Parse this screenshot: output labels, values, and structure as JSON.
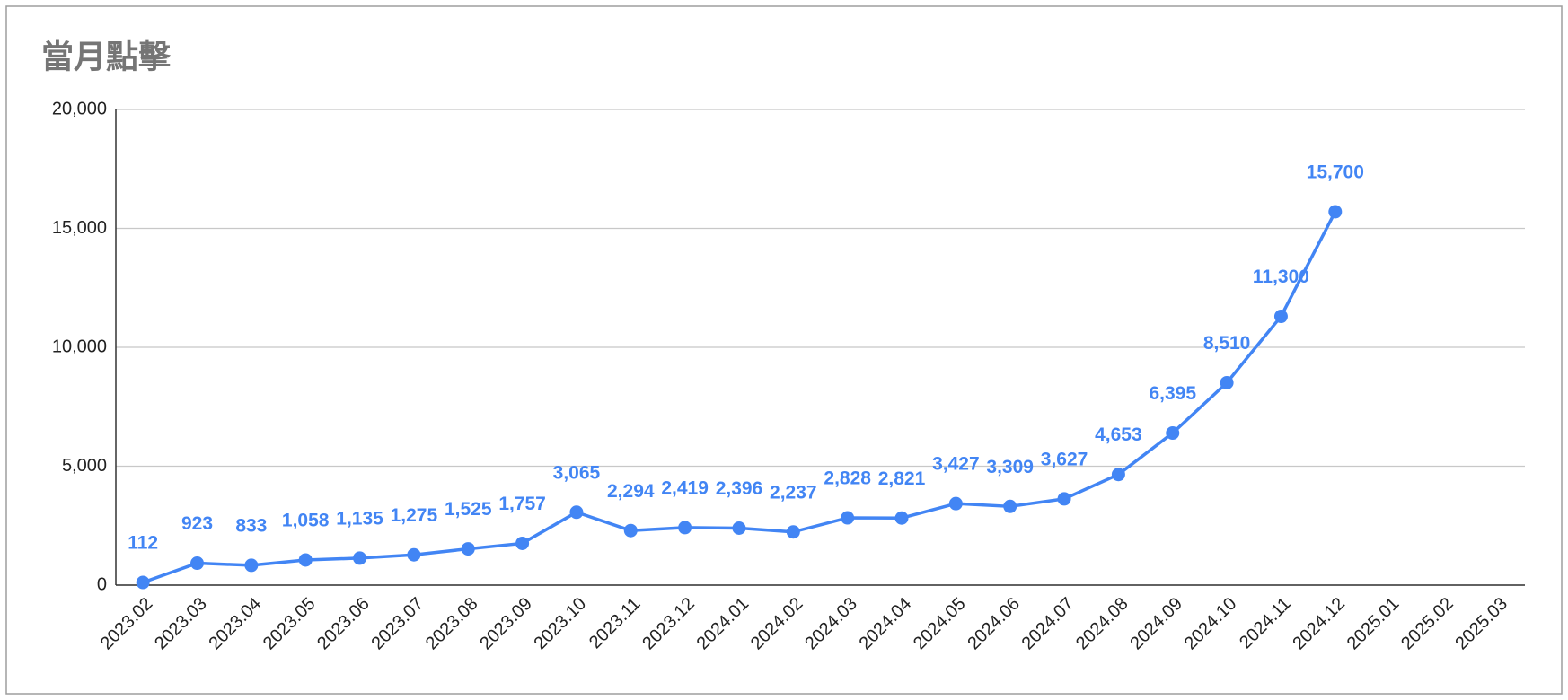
{
  "chart_data": {
    "type": "line",
    "title": "當月點擊",
    "categories": [
      "2023.02",
      "2023.03",
      "2023.04",
      "2023.05",
      "2023.06",
      "2023.07",
      "2023.08",
      "2023.09",
      "2023.10",
      "2023.11",
      "2023.12",
      "2024.01",
      "2024.02",
      "2024.03",
      "2024.04",
      "2024.05",
      "2024.06",
      "2024.07",
      "2024.08",
      "2024.09",
      "2024.10",
      "2024.11",
      "2024.12",
      "2025.01",
      "2025.02",
      "2025.03"
    ],
    "series": [
      {
        "color": "#4285f4",
        "values": [
          112,
          923,
          833,
          1058,
          1135,
          1275,
          1525,
          1757,
          3065,
          2294,
          2419,
          2396,
          2237,
          2828,
          2821,
          3427,
          3309,
          3627,
          4653,
          6395,
          8510,
          11300,
          15700,
          null,
          null,
          null
        ],
        "value_labels": [
          "112",
          "923",
          "833",
          "1,058",
          "1,135",
          "1,275",
          "1,525",
          "1,757",
          "3,065",
          "2,294",
          "2,419",
          "2,396",
          "2,237",
          "2,828",
          "2,821",
          "3,427",
          "3,309",
          "3,627",
          "4,653",
          "6,395",
          "8,510",
          "11,300",
          "15,700",
          null,
          null,
          null
        ]
      }
    ],
    "ylim": [
      0,
      20000
    ],
    "yticks": [
      0,
      {
        "value": 5000,
        "label": "5,000"
      },
      {
        "value": 10000,
        "label": "10,000"
      },
      {
        "value": 15000,
        "label": "15,000"
      },
      {
        "value": 20000,
        "label": "20,000"
      }
    ],
    "grid": true
  }
}
